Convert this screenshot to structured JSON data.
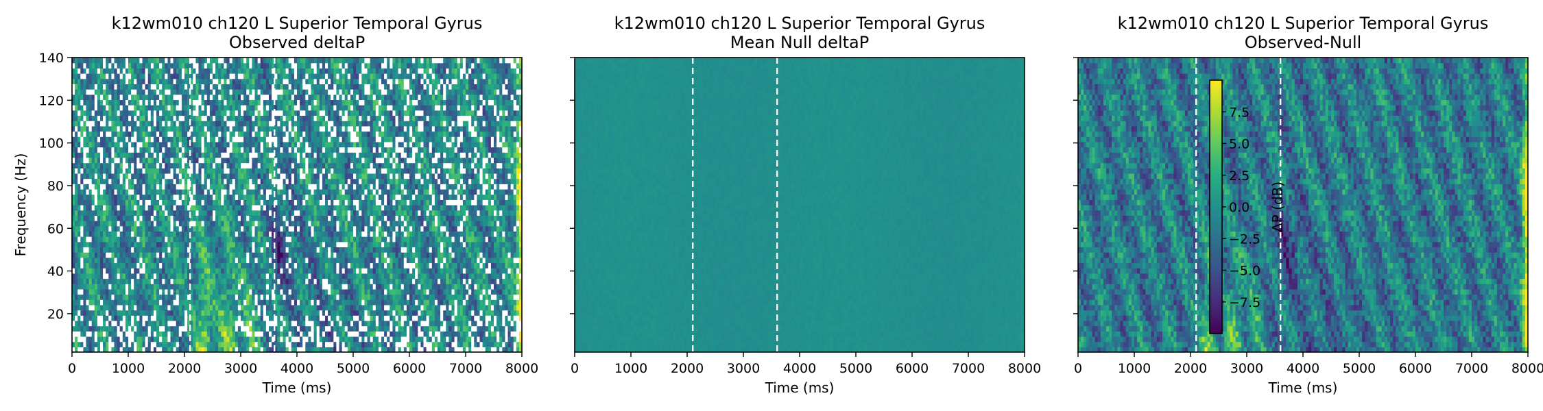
{
  "colors": {
    "colormap": "viridis",
    "dashed_line": "#ffffff",
    "axis": "#000000"
  },
  "chart_data": [
    {
      "type": "heatmap",
      "title": "k12wm010 ch120 L Superior Temporal Gyrus",
      "subtitle": "Observed deltaP",
      "xlabel": "Time (ms)",
      "ylabel": "Frequency (Hz)",
      "xlim": [
        0,
        8000
      ],
      "ylim": [
        2,
        140
      ],
      "xticks": [
        "0",
        "1000",
        "2000",
        "3000",
        "4000",
        "5000",
        "6000",
        "7000",
        "8000"
      ],
      "yticks": [
        "20",
        "40",
        "60",
        "80",
        "100",
        "120",
        "140"
      ],
      "vlines_ms": [
        2100,
        3600
      ],
      "colormap": "viridis",
      "masked_white_cells": true,
      "features": "broadband high power at 2200-3200 ms below 60 Hz and at 7900-8000 ms; white masked cells scattered throughout"
    },
    {
      "type": "heatmap",
      "title": "k12wm010 ch120 L Superior Temporal Gyrus",
      "subtitle": "Mean Null deltaP",
      "xlabel": "Time (ms)",
      "ylabel": "",
      "xlim": [
        0,
        8000
      ],
      "ylim": [
        2,
        140
      ],
      "xticks": [
        "0",
        "1000",
        "2000",
        "3000",
        "4000",
        "5000",
        "6000",
        "7000",
        "8000"
      ],
      "yticks": [
        "20",
        "40",
        "60",
        "80",
        "100",
        "120",
        "140"
      ],
      "show_ytick_labels": false,
      "vlines_ms": [
        2100,
        3600
      ],
      "colormap": "viridis",
      "features": "near-uniform value around 0 dB"
    },
    {
      "type": "heatmap",
      "title": "k12wm010 ch120 L Superior Temporal Gyrus",
      "subtitle": "Observed-Null",
      "xlabel": "Time (ms)",
      "ylabel": "",
      "xlim": [
        0,
        8000
      ],
      "ylim": [
        2,
        140
      ],
      "xticks": [
        "0",
        "1000",
        "2000",
        "3000",
        "4000",
        "5000",
        "6000",
        "7000",
        "8000"
      ],
      "yticks": [
        "20",
        "40",
        "60",
        "80",
        "100",
        "120",
        "140"
      ],
      "show_ytick_labels": false,
      "vlines_ms": [
        2100,
        3600
      ],
      "colormap": "viridis",
      "colorbar": {
        "label": "ΔP (dB)",
        "range": [
          -10,
          10
        ],
        "ticks": [
          "7.5",
          "5.0",
          "2.5",
          "0.0",
          "−2.5",
          "−5.0",
          "−7.5"
        ],
        "placement": "inset"
      },
      "features": "broadband increase at 2200-3000 ms below 60 Hz and at 7900-8000 ms; decrease near 3600-4000 ms around 45-65 Hz"
    }
  ]
}
